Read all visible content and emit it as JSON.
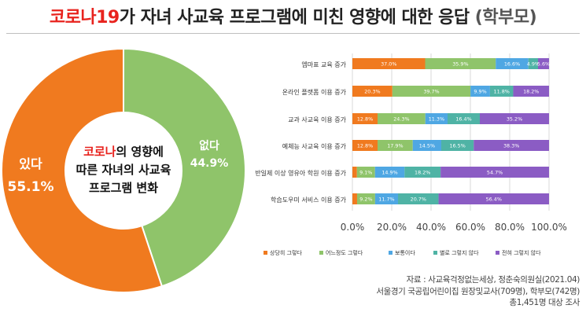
{
  "title": {
    "highlight": "코로나19",
    "main": "가 자녀 사교육 프로그램에 미친 영향에 대한 응답",
    "suffix": "(학부모)"
  },
  "chart_data": [
    {
      "type": "pie",
      "center_label": {
        "highlight": "코로나",
        "line1_rest": "의 영향에",
        "line2": "따른 자녀의 사교육",
        "line3": "프로그램 변화"
      },
      "slices": [
        {
          "label": "없다",
          "value": 44.9,
          "value_label": "44.9%",
          "color": "#8fc46a"
        },
        {
          "label": "있다",
          "value": 55.1,
          "value_label": "55.1%",
          "color": "#f07a1f"
        }
      ]
    },
    {
      "type": "bar",
      "orientation": "horizontal",
      "stacked": true,
      "categories": [
        "엠마표 교육 증가",
        "온라인 플랫폼 이용 증가",
        "교과 사교육 이용 증가",
        "예체능 사교육 이용 증가",
        "반일제 이상 영유아 학원 이용 증가",
        "학습도우미 서비스 이용 증가"
      ],
      "series": [
        {
          "name": "상당히 그렇다",
          "color": "#f07a1f",
          "values": [
            37.0,
            20.3,
            12.8,
            12.8,
            2.3,
            2.4
          ],
          "labels": [
            "37.0%",
            "20.3%",
            "12.8%",
            "12.8%",
            "",
            ""
          ]
        },
        {
          "name": "어느정도 그렇다",
          "color": "#8fc46a",
          "values": [
            35.9,
            39.7,
            24.3,
            17.9,
            9.1,
            9.2
          ],
          "labels": [
            "35.9%",
            "39.7%",
            "24.3%",
            "17.9%",
            "9.1%",
            "9.2%"
          ]
        },
        {
          "name": "보통이다",
          "color": "#4fa7e3",
          "values": [
            16.6,
            9.9,
            11.3,
            14.5,
            14.9,
            11.7
          ],
          "labels": [
            "16.6%",
            "9.9%",
            "11.3%",
            "14.5%",
            "14.9%",
            "11.7%"
          ]
        },
        {
          "name": "별로 그렇지 않다",
          "color": "#4fb3a5",
          "values": [
            4.9,
            11.8,
            16.4,
            16.5,
            18.2,
            20.7
          ],
          "labels": [
            "4.9%",
            "11.8%",
            "16.4%",
            "16.5%",
            "18.2%",
            "20.7%"
          ]
        },
        {
          "name": "전혀 그렇지 않다",
          "color": "#8b5cc4",
          "values": [
            5.6,
            18.2,
            35.2,
            38.3,
            54.7,
            56.4
          ],
          "labels": [
            "5.6%",
            "18.2%",
            "35.2%",
            "38.3%",
            "54.7%",
            "56.4%"
          ]
        }
      ],
      "xlim": [
        0,
        100
      ],
      "xticks": [
        "0.0%",
        "20.0%",
        "40.0%",
        "60.0%",
        "80.0%",
        "100.0%"
      ],
      "legend_position": "bottom"
    }
  ],
  "source": {
    "line1": "자료 : 사교육걱정없는세상, 정춘숙의원실(2021.04)",
    "line2": "서울경기 국공립어린이집 원장및교사(709명), 학부모(742명)",
    "line3": "총1,451명 대상 조사"
  }
}
